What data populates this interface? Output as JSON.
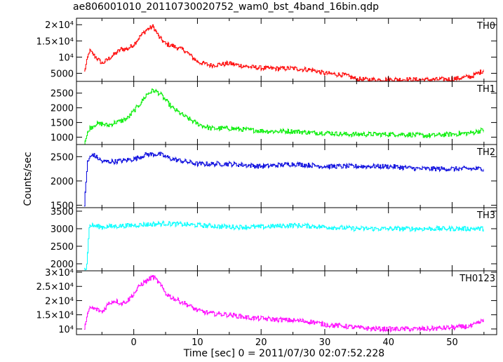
{
  "figure": {
    "title": "ae806001010_20110730020752_wam0_bst_4band_16bin.qdp"
  },
  "chart_data": {
    "type": "line",
    "title": "ae806001010_20110730020752_wam0_bst_4band_16bin.qdp",
    "xlabel": "Time [sec] 0 = 2011/07/30 02:07:52.228",
    "ylabel": "Counts/sec",
    "xlim": [
      -9,
      57
    ],
    "x_ticks": [
      0,
      10,
      20,
      30,
      40,
      50
    ],
    "x_tick_labels": [
      "0",
      "10",
      "20",
      "30",
      "40",
      "50"
    ],
    "panels": [
      {
        "name": "TH0",
        "color": "#ff0000",
        "ylim": [
          2500,
          22000
        ],
        "y_ticks": [
          5000,
          10000,
          15000,
          20000
        ],
        "y_tick_labels": [
          "5000",
          "10⁴",
          "1.5×10⁴",
          "2×10⁴"
        ],
        "x": [
          -7.8,
          -7,
          -6,
          -5,
          -4,
          -3,
          -2,
          -1,
          0,
          1,
          2,
          3,
          4,
          5,
          6,
          8,
          10,
          12,
          15,
          18,
          21,
          25,
          28,
          30,
          33,
          35,
          38,
          42,
          46,
          50,
          53,
          55
        ],
        "y": [
          5500,
          12000,
          10000,
          8000,
          9500,
          11000,
          12500,
          12500,
          14000,
          16500,
          18500,
          19500,
          16000,
          14000,
          13500,
          12000,
          8500,
          7500,
          8000,
          7000,
          6500,
          6500,
          6000,
          5000,
          4500,
          3200,
          3000,
          3100,
          3000,
          3200,
          4000,
          6000
        ]
      },
      {
        "name": "TH1",
        "color": "#00ee00",
        "ylim": [
          750,
          2900
        ],
        "y_ticks": [
          1000,
          1500,
          2000,
          2500
        ],
        "y_tick_labels": [
          "1000",
          "1500",
          "2000",
          "2500"
        ],
        "x": [
          -7.8,
          -7,
          -6,
          -5,
          -4,
          -3,
          -2,
          -1,
          0,
          1,
          2,
          3,
          4,
          5,
          6,
          8,
          10,
          12,
          15,
          18,
          21,
          25,
          28,
          30,
          33,
          35,
          38,
          42,
          46,
          50,
          53,
          55
        ],
        "y": [
          800,
          1300,
          1450,
          1450,
          1400,
          1500,
          1550,
          1650,
          1900,
          2150,
          2450,
          2600,
          2500,
          2250,
          2000,
          1700,
          1450,
          1300,
          1300,
          1250,
          1200,
          1200,
          1150,
          1150,
          1100,
          1100,
          1100,
          1100,
          1050,
          1100,
          1150,
          1250
        ]
      },
      {
        "name": "TH2",
        "color": "#0000dd",
        "ylim": [
          1450,
          2750
        ],
        "y_ticks": [
          1500,
          2000,
          2500
        ],
        "y_tick_labels": [
          "1500",
          "2000",
          "2500"
        ],
        "x": [
          -7.8,
          -7.3,
          -6.5,
          -5,
          -3,
          0,
          2,
          4,
          6,
          8,
          10,
          15,
          20,
          25,
          30,
          35,
          40,
          45,
          50,
          55
        ],
        "y": [
          1500,
          2400,
          2550,
          2400,
          2400,
          2450,
          2550,
          2550,
          2450,
          2400,
          2350,
          2350,
          2300,
          2350,
          2300,
          2300,
          2300,
          2250,
          2250,
          2250
        ]
      },
      {
        "name": "TH3",
        "color": "#00ffff",
        "ylim": [
          1800,
          3600
        ],
        "y_ticks": [
          2000,
          2500,
          3000,
          3500
        ],
        "y_tick_labels": [
          "2000",
          "2500",
          "3000",
          "3500"
        ],
        "x": [
          -7.8,
          -7.5,
          -7,
          -5,
          0,
          5,
          10,
          15,
          20,
          25,
          30,
          35,
          40,
          45,
          50,
          55
        ],
        "y": [
          1900,
          1800,
          3100,
          3050,
          3100,
          3150,
          3100,
          3050,
          3050,
          3100,
          3050,
          3000,
          3000,
          3000,
          3000,
          3000
        ]
      },
      {
        "name": "TH0123",
        "color": "#ff00ff",
        "ylim": [
          8000,
          30500
        ],
        "y_ticks": [
          10000,
          15000,
          20000,
          25000,
          30000
        ],
        "y_tick_labels": [
          "10⁴",
          "1.5×10⁴",
          "2×10⁴",
          "2.5×10⁴",
          "3×10⁴"
        ],
        "x": [
          -7.8,
          -7,
          -6,
          -5,
          -4,
          -3,
          -2,
          -1,
          0,
          1,
          2,
          3,
          4,
          5,
          6,
          8,
          10,
          12,
          15,
          18,
          21,
          25,
          28,
          30,
          33,
          35,
          38,
          42,
          46,
          50,
          53,
          55
        ],
        "y": [
          10000,
          17500,
          17000,
          16000,
          19000,
          20000,
          19000,
          20000,
          22500,
          25500,
          27000,
          28500,
          26000,
          22500,
          21000,
          19000,
          16500,
          15500,
          15000,
          14000,
          13500,
          13000,
          12500,
          11500,
          11000,
          10500,
          10000,
          10000,
          10000,
          10500,
          11000,
          13000
        ]
      }
    ]
  }
}
